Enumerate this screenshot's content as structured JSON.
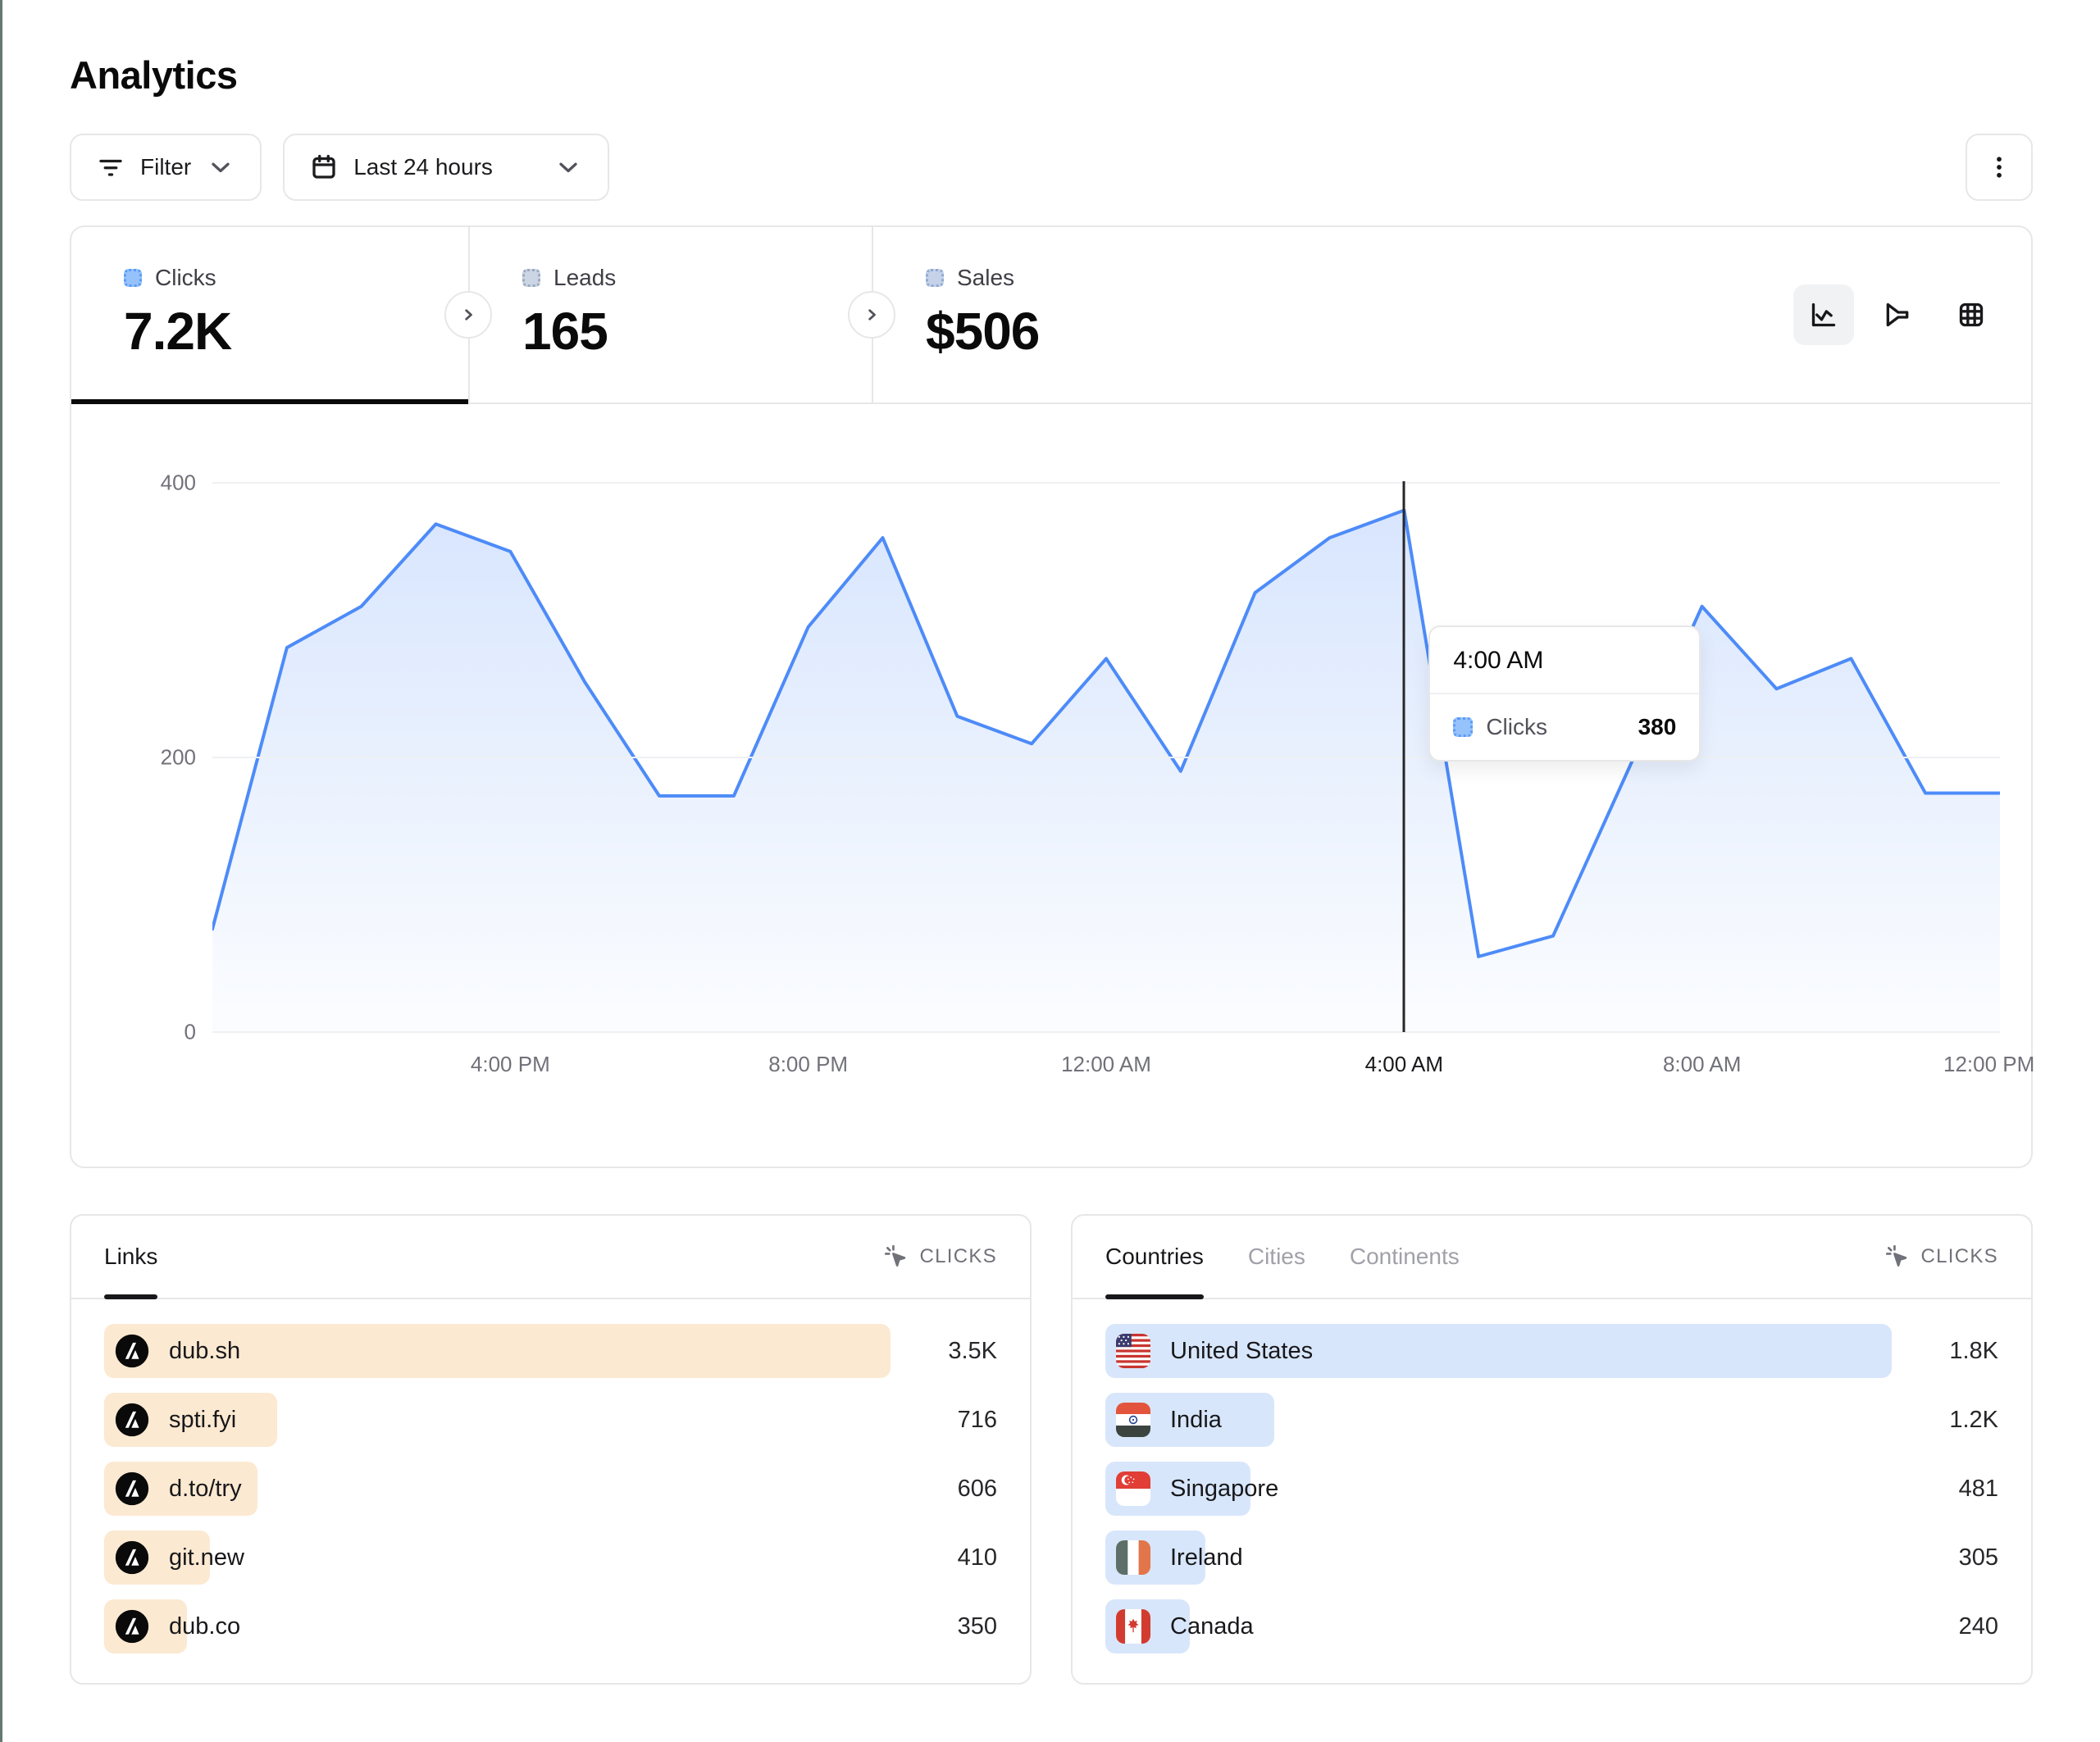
{
  "page": {
    "title": "Analytics"
  },
  "toolbar": {
    "filter_label": "Filter",
    "date_range_label": "Last 24 hours",
    "icons": {
      "filter": "filter-lines-icon",
      "date": "calendar-icon",
      "menu": "kebab-vertical-icon"
    }
  },
  "stats": [
    {
      "label": "Clicks",
      "value": "7.2K",
      "active": true,
      "legend_color": "#96c2fb"
    },
    {
      "label": "Leads",
      "value": "165",
      "active": false,
      "legend_color": "#ccd5e3"
    },
    {
      "label": "Sales",
      "value": "$506",
      "active": false,
      "legend_color": "#c5d2ea"
    }
  ],
  "view_switcher": {
    "options": [
      {
        "icon": "line-chart-icon",
        "active": true
      },
      {
        "icon": "funnel-icon",
        "active": false
      },
      {
        "icon": "grid-table-icon",
        "active": false
      }
    ]
  },
  "chart_data": {
    "type": "area",
    "title": "Clicks over last 24 hours",
    "x_start_label": "12:00 PM",
    "x_interval": "1 hour",
    "series": [
      {
        "name": "Clicks",
        "color": "#4d8bf8",
        "values": [
          75,
          280,
          310,
          370,
          350,
          255,
          172,
          172,
          295,
          360,
          230,
          210,
          272,
          190,
          320,
          360,
          380,
          55,
          70,
          190,
          310,
          250,
          272,
          174,
          174
        ]
      }
    ],
    "x_ticks": [
      {
        "label": "4:00 PM",
        "index": 4,
        "active": false
      },
      {
        "label": "8:00 PM",
        "index": 8,
        "active": false
      },
      {
        "label": "12:00 AM",
        "index": 12,
        "active": false
      },
      {
        "label": "4:00 AM",
        "index": 16,
        "active": true
      },
      {
        "label": "8:00 AM",
        "index": 20,
        "active": false
      },
      {
        "label": "12:00 PM",
        "index": 24,
        "active": false
      }
    ],
    "y_ticks": [
      0,
      200,
      400
    ],
    "ylim": [
      0,
      400
    ],
    "grid": true,
    "legend_position": "none",
    "highlight": {
      "index": 16,
      "time": "4:00 AM",
      "series": "Clicks",
      "value": 380,
      "value_label": "380"
    }
  },
  "links_panel": {
    "tabs": [
      {
        "label": "Links",
        "active": true
      }
    ],
    "metric_label": "CLICKS",
    "metric_icon": "cursor-click-icon",
    "bar_color": "#fce9d1",
    "row_icon": "dub-logo-icon",
    "rows": [
      {
        "label": "dub.sh",
        "value": "3.5K",
        "bar_pct": 100
      },
      {
        "label": "spti.fyi",
        "value": "716",
        "bar_pct": 22
      },
      {
        "label": "d.to/try",
        "value": "606",
        "bar_pct": 19.5
      },
      {
        "label": "git.new",
        "value": "410",
        "bar_pct": 13.5
      },
      {
        "label": "dub.co",
        "value": "350",
        "bar_pct": 10.5
      }
    ]
  },
  "countries_panel": {
    "tabs": [
      {
        "label": "Countries",
        "active": true
      },
      {
        "label": "Cities",
        "active": false
      },
      {
        "label": "Continents",
        "active": false
      }
    ],
    "metric_label": "CLICKS",
    "metric_icon": "cursor-click-icon",
    "bar_color": "#d8e6fb",
    "rows": [
      {
        "label": "United States",
        "value": "1.8K",
        "bar_pct": 100,
        "flag": "us"
      },
      {
        "label": "India",
        "value": "1.2K",
        "bar_pct": 21.5,
        "flag": "in"
      },
      {
        "label": "Singapore",
        "value": "481",
        "bar_pct": 18.5,
        "flag": "sg"
      },
      {
        "label": "Ireland",
        "value": "305",
        "bar_pct": 12.7,
        "flag": "ie"
      },
      {
        "label": "Canada",
        "value": "240",
        "bar_pct": 10.7,
        "flag": "ca"
      }
    ]
  }
}
